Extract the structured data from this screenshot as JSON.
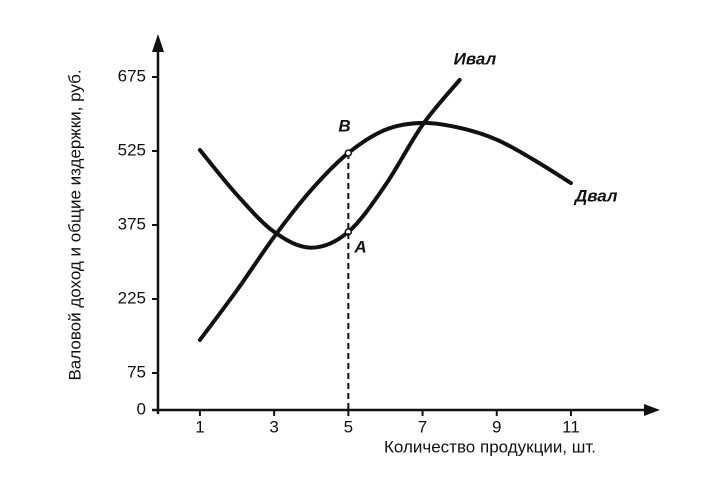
{
  "chart_data": {
    "type": "line",
    "x_label": "Количество продукции, шт.",
    "y_label": "Валовой доход и общие издержки, руб.",
    "x": [
      1,
      2,
      3,
      4,
      5,
      6,
      7,
      8,
      9,
      10,
      11
    ],
    "series": [
      {
        "name": "Ивал",
        "color": "#111111",
        "values": [
          527,
          436,
          361,
          329,
          361,
          456,
          578,
          669,
          null,
          null,
          null
        ],
        "point_labels": [
          null,
          null,
          null,
          null,
          "A",
          null,
          null,
          null,
          null,
          null,
          null
        ]
      },
      {
        "name": "Двал",
        "color": "#111111",
        "values": [
          142,
          243,
          351,
          446,
          521,
          568,
          582,
          572,
          548,
          507,
          460
        ],
        "point_labels": [
          null,
          null,
          null,
          null,
          "B",
          null,
          null,
          null,
          null,
          null,
          null
        ]
      }
    ],
    "xlim": [
      -0.13,
      13.4
    ],
    "xticks": [
      1,
      3,
      5,
      7,
      9,
      11
    ],
    "ylim": [
      0,
      750
    ],
    "yticks": [
      0,
      75,
      225,
      375,
      525,
      675
    ],
    "grid": false
  }
}
